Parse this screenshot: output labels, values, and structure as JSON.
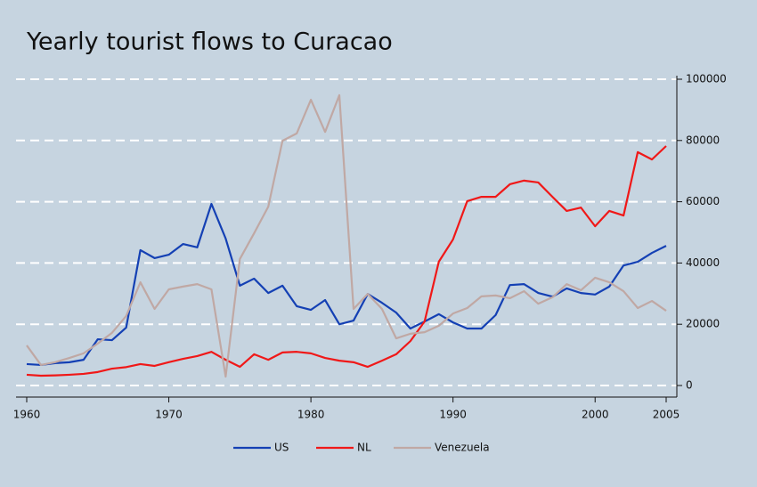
{
  "chart_data": {
    "type": "line",
    "title": "Yearly tourist flows to Curacao",
    "x": [
      1960,
      1961,
      1962,
      1963,
      1964,
      1965,
      1966,
      1967,
      1968,
      1969,
      1970,
      1971,
      1972,
      1973,
      1974,
      1975,
      1976,
      1977,
      1978,
      1979,
      1980,
      1981,
      1982,
      1983,
      1984,
      1985,
      1986,
      1987,
      1988,
      1989,
      1990,
      1991,
      1992,
      1993,
      1994,
      1995,
      1996,
      1997,
      1998,
      1999,
      2000,
      2001,
      2002,
      2003,
      2004,
      2005
    ],
    "series": [
      {
        "name": "US",
        "color": "#1440b4",
        "values": [
          7000,
          6700,
          7300,
          7600,
          8400,
          15100,
          14800,
          18900,
          44200,
          41600,
          42700,
          46200,
          45100,
          59300,
          48000,
          32600,
          34900,
          30200,
          32600,
          25900,
          24700,
          27900,
          20000,
          21200,
          29900,
          27000,
          23800,
          18600,
          20900,
          23300,
          20600,
          18600,
          18600,
          23000,
          32800,
          33100,
          30200,
          29000,
          31700,
          30200,
          29700,
          32300,
          39200,
          40400,
          43300,
          45600
        ]
      },
      {
        "name": "NL",
        "color": "#f01818",
        "values": [
          3500,
          3200,
          3300,
          3500,
          3800,
          4400,
          5500,
          6000,
          7000,
          6400,
          7600,
          8700,
          9600,
          11000,
          8400,
          6100,
          10200,
          8400,
          10800,
          11000,
          10500,
          9000,
          8100,
          7600,
          6100,
          8100,
          10200,
          14500,
          20900,
          40400,
          47700,
          60200,
          61600,
          61600,
          65700,
          66900,
          66300,
          61600,
          57000,
          58100,
          52000,
          57000,
          55500,
          76200,
          73800,
          78200
        ]
      },
      {
        "name": "Venezuela",
        "color": "#c0a8a4",
        "values": [
          13100,
          6700,
          7600,
          9000,
          10500,
          13700,
          17200,
          22700,
          33700,
          25000,
          31400,
          32300,
          33100,
          31400,
          2900,
          41300,
          49700,
          58400,
          79900,
          82300,
          93300,
          82800,
          94800,
          25000,
          29900,
          25000,
          15400,
          16900,
          17400,
          19500,
          23500,
          25300,
          29100,
          29400,
          28500,
          30800,
          26700,
          28800,
          33100,
          31100,
          35200,
          33700,
          30800,
          25300,
          27600,
          24400
        ]
      }
    ],
    "xlim": [
      1960,
      2005
    ],
    "xticks": [
      1960,
      1970,
      1980,
      1990,
      2000,
      2005
    ],
    "ylim": [
      0,
      100000
    ],
    "yticks": [
      0,
      20000,
      40000,
      60000,
      80000,
      100000
    ],
    "grid": true
  }
}
